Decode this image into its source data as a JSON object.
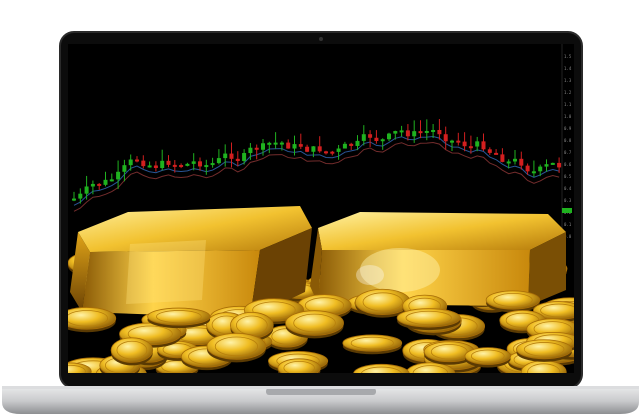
{
  "image": {
    "subject": "laptop-with-gold-bars-and-coins-over-candlestick-chart",
    "colors": {
      "screen_bg": "#000000",
      "bezel": "#0c0c0c",
      "laptop_base": "#c9cacc",
      "candle_up": "#1fb21f",
      "candle_down": "#d21f1f",
      "gold_light": "#ffd84a",
      "gold_mid": "#d9a313",
      "gold_dark": "#7a4f05",
      "ma_line_1": "#3a7bd5",
      "ma_line_2": "#c04a4a"
    }
  },
  "axis": {
    "scale_labels": [
      "1.5",
      "1.4",
      "1.3",
      "1.2",
      "1.1",
      "1.0",
      "0.9",
      "0.8",
      "0.7",
      "0.6",
      "0.5",
      "0.4",
      "0.3",
      "0.2",
      "0.1",
      "0.0"
    ]
  }
}
